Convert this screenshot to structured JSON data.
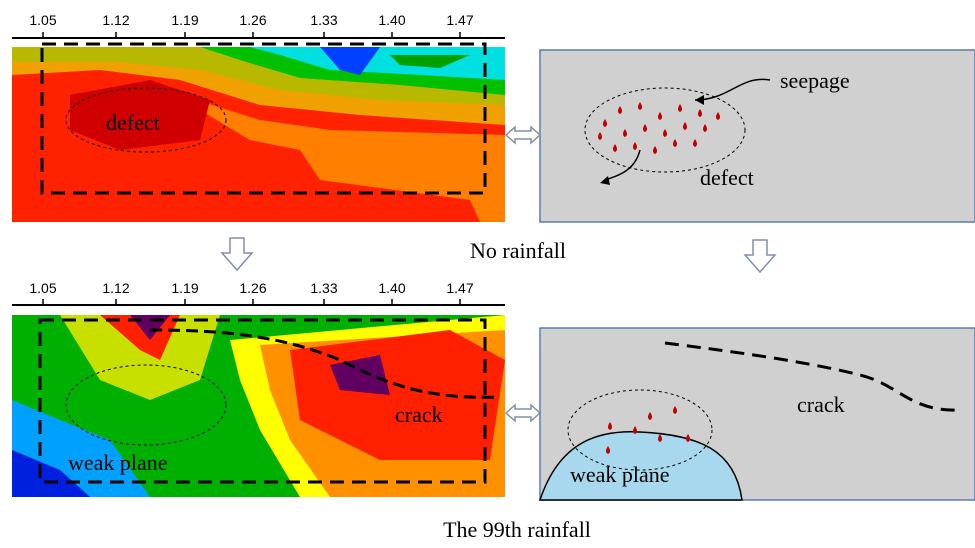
{
  "top_left": {
    "ticks": [
      "1.05",
      "1.12",
      "1.19",
      "1.26",
      "1.33",
      "1.40",
      "1.47"
    ],
    "label": "defect"
  },
  "top_right": {
    "seepage_label": "seepage",
    "defect_label": "defect"
  },
  "caption_top": "No rainfall",
  "bottom_left": {
    "ticks": [
      "1.05",
      "1.12",
      "1.19",
      "1.26",
      "1.33",
      "1.40",
      "1.47"
    ],
    "crack_label": "crack",
    "weak_plane_label": "weak plane"
  },
  "bottom_right": {
    "crack_label": "crack",
    "weak_plane_label": "weak plane"
  },
  "caption_bottom": "The 99th rainfall"
}
